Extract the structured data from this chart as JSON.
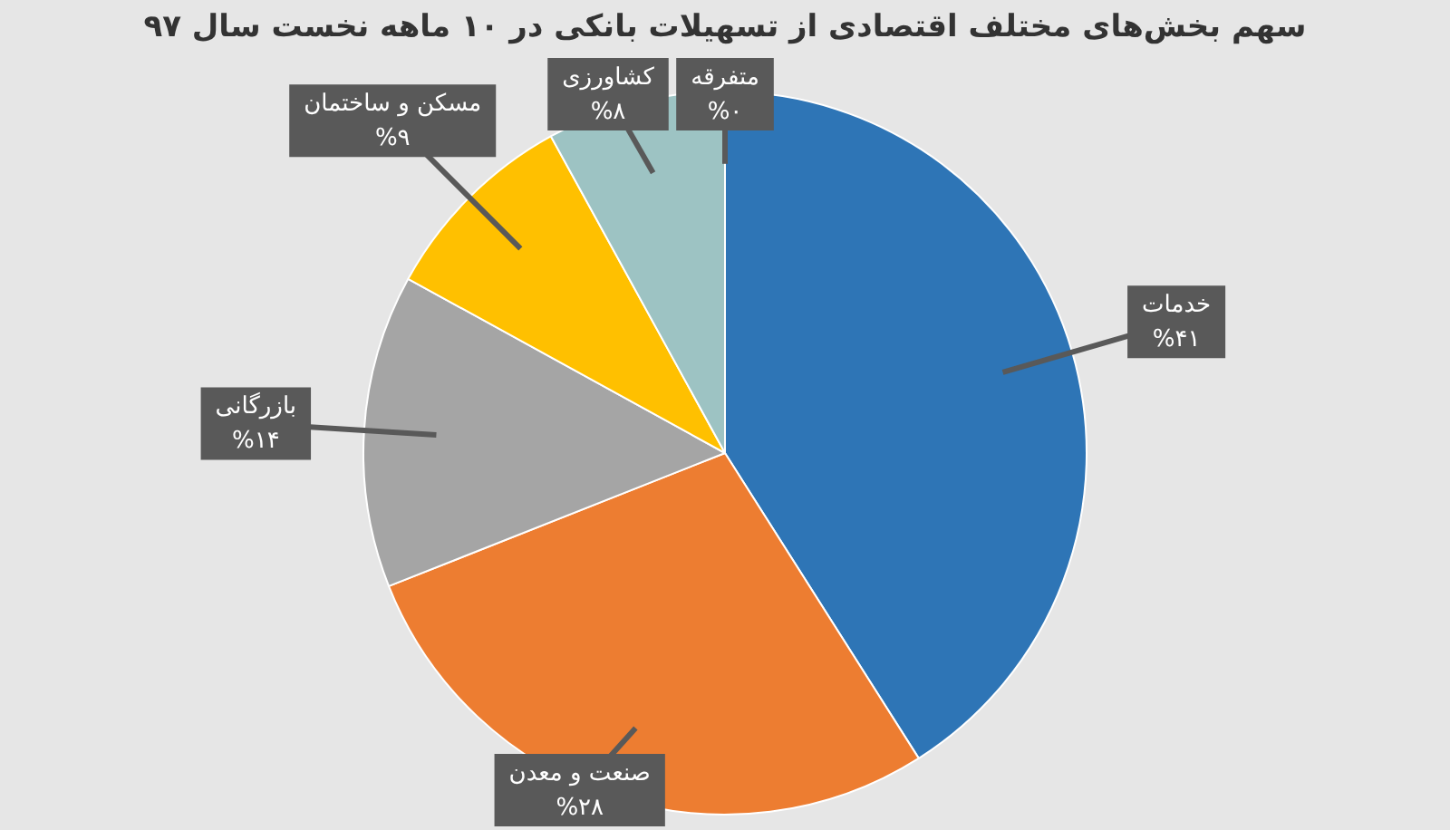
{
  "chart_data": {
    "type": "pie",
    "title": "سهم بخش‌های مختلف اقتصادی از تسهیلات بانکی در ۱۰ ماهه نخست سال ۹۷",
    "categories": [
      "خدمات",
      "صنعت و معدن",
      "بازرگانی",
      "مسکن و ساختمان",
      "کشاورزی",
      "متفرقه"
    ],
    "values": [
      41,
      28,
      14,
      9,
      8,
      0
    ],
    "value_labels": [
      "%۴۱",
      "%۲۸",
      "%۱۴",
      "%۹",
      "%۸",
      "%۰"
    ],
    "colors": [
      "#2e75b6",
      "#ed7d31",
      "#a5a5a5",
      "#ffc000",
      "#9dc3c3",
      "#70ad47"
    ],
    "legend": false
  }
}
